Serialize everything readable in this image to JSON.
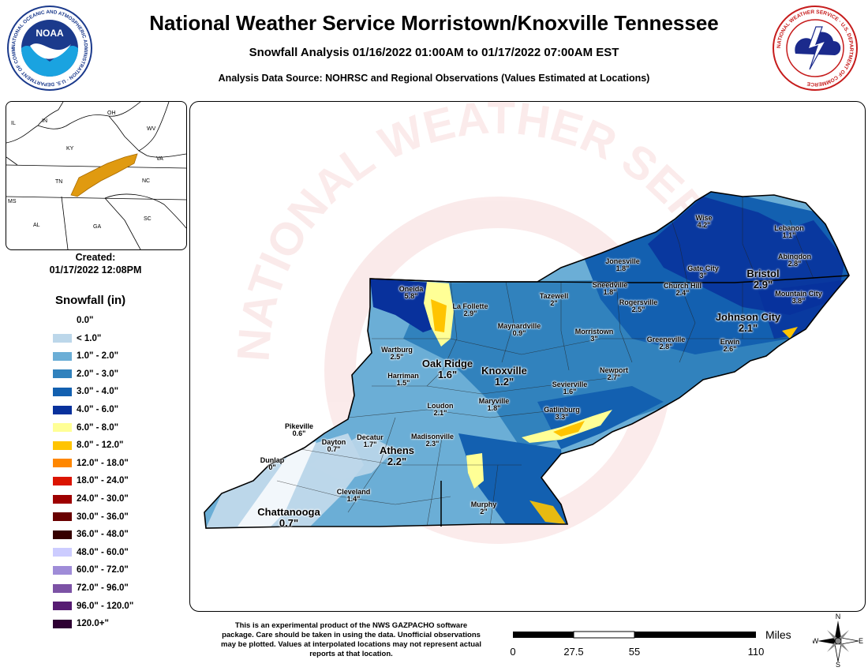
{
  "header": {
    "title": "National Weather Service Morristown/Knoxville Tennessee",
    "subtitle": "Snowfall Analysis 01/16/2022 01:00AM to 01/17/2022 07:00AM EST",
    "source": "Analysis Data Source: NOHRSC and Regional Observations (Values Estimated at Locations)"
  },
  "logos": {
    "noaa_text": "NOAA",
    "noaa_ring": "NATIONAL OCEANIC AND ATMOSPHERIC ADMINISTRATION · U.S. DEPARTMENT OF COMMERCE",
    "nws_ring": "NATIONAL WEATHER SERVICE · U.S. DEPARTMENT OF COMMERCE"
  },
  "inset": {
    "states": [
      "IL",
      "IN",
      "OH",
      "WV",
      "KY",
      "VA",
      "TN",
      "NC",
      "MS",
      "AL",
      "GA",
      "SC"
    ],
    "highlight_color": "#e09a10"
  },
  "created": {
    "label": "Created:",
    "value": "01/17/2022 12:08PM"
  },
  "legend": {
    "title": "Snowfall (in)",
    "items": [
      {
        "label": "0.0\"",
        "color": ""
      },
      {
        "label": "< 1.0\"",
        "color": "#bcd7ea"
      },
      {
        "label": "1.0\" - 2.0\"",
        "color": "#6baed6"
      },
      {
        "label": "2.0\" - 3.0\"",
        "color": "#3182bd"
      },
      {
        "label": "3.0\" - 4.0\"",
        "color": "#1360b0"
      },
      {
        "label": "4.0\" - 6.0\"",
        "color": "#08319c"
      },
      {
        "label": "6.0\" - 8.0\"",
        "color": "#ffff96"
      },
      {
        "label": "8.0\" - 12.0\"",
        "color": "#ffc400"
      },
      {
        "label": "12.0\" - 18.0\"",
        "color": "#ff8700"
      },
      {
        "label": "18.0\" - 24.0\"",
        "color": "#db1400"
      },
      {
        "label": "24.0\" - 30.0\"",
        "color": "#9e0000"
      },
      {
        "label": "30.0\" - 36.0\"",
        "color": "#690000"
      },
      {
        "label": "36.0\" - 48.0\"",
        "color": "#360000"
      },
      {
        "label": "48.0\" - 60.0\"",
        "color": "#ccccff"
      },
      {
        "label": "60.0\" - 72.0\"",
        "color": "#9f8cd8"
      },
      {
        "label": "72.0\" - 96.0\"",
        "color": "#7c52a5"
      },
      {
        "label": "96.0\" - 120.0\"",
        "color": "#561c72"
      },
      {
        "label": "120.0+\"",
        "color": "#2e0033"
      }
    ]
  },
  "map": {
    "watermark": "NATIONAL WEATHER SERVICE · U.S. DEPARTMENT OF COMMERCE",
    "cities": [
      {
        "name": "Wise",
        "value": "4.2\""
      },
      {
        "name": "Lebanon",
        "value": "1.1\""
      },
      {
        "name": "Abingdon",
        "value": "2.8\""
      },
      {
        "name": "Jonesville",
        "value": "1.8\""
      },
      {
        "name": "Gate City",
        "value": "3\""
      },
      {
        "name": "Bristol",
        "value": "2.9\""
      },
      {
        "name": "Mountain City",
        "value": "3.8\""
      },
      {
        "name": "Sneedville",
        "value": "1.8\""
      },
      {
        "name": "Church Hill",
        "value": "2.4\""
      },
      {
        "name": "Oneida",
        "value": "5.8\""
      },
      {
        "name": "Tazewell",
        "value": "2\""
      },
      {
        "name": "Rogersville",
        "value": "2.5\""
      },
      {
        "name": "La Follette",
        "value": "2.9\""
      },
      {
        "name": "Johnson City",
        "value": "2.1\""
      },
      {
        "name": "Maynardville",
        "value": "0.9\""
      },
      {
        "name": "Morristown",
        "value": "3\""
      },
      {
        "name": "Greeneville",
        "value": "2.8\""
      },
      {
        "name": "Erwin",
        "value": "2.6\""
      },
      {
        "name": "Wartburg",
        "value": "2.5\""
      },
      {
        "name": "Oak Ridge",
        "value": "1.6\""
      },
      {
        "name": "Knoxville",
        "value": "1.2\""
      },
      {
        "name": "Newport",
        "value": "2.7\""
      },
      {
        "name": "Harriman",
        "value": "1.5\""
      },
      {
        "name": "Sevierville",
        "value": "1.6\""
      },
      {
        "name": "Loudon",
        "value": "2.1\""
      },
      {
        "name": "Maryville",
        "value": "1.8\""
      },
      {
        "name": "Gatlinburg",
        "value": "3.3\""
      },
      {
        "name": "Pikeville",
        "value": "0.6\""
      },
      {
        "name": "Dayton",
        "value": "0.7\""
      },
      {
        "name": "Decatur",
        "value": "1.7\""
      },
      {
        "name": "Athens",
        "value": "2.2\""
      },
      {
        "name": "Madisonville",
        "value": "2.3\""
      },
      {
        "name": "Dunlap",
        "value": "0\""
      },
      {
        "name": "Cleveland",
        "value": "1.4\""
      },
      {
        "name": "Murphy",
        "value": "2\""
      },
      {
        "name": "Chattanooga",
        "value": "0.7\""
      }
    ]
  },
  "footer": {
    "disclaimer": "This is an experimental product of the NWS GAZPACHO software package. Care should be taken in using the data. Unofficial observations may be plotted. Values at interpolated locations may not represent actual reports at that location.",
    "scale": {
      "unit": "Miles",
      "ticks": [
        "0",
        "27.5",
        "55",
        "110"
      ]
    },
    "compass": {
      "n": "N",
      "s": "S",
      "e": "E",
      "w": "W"
    }
  }
}
